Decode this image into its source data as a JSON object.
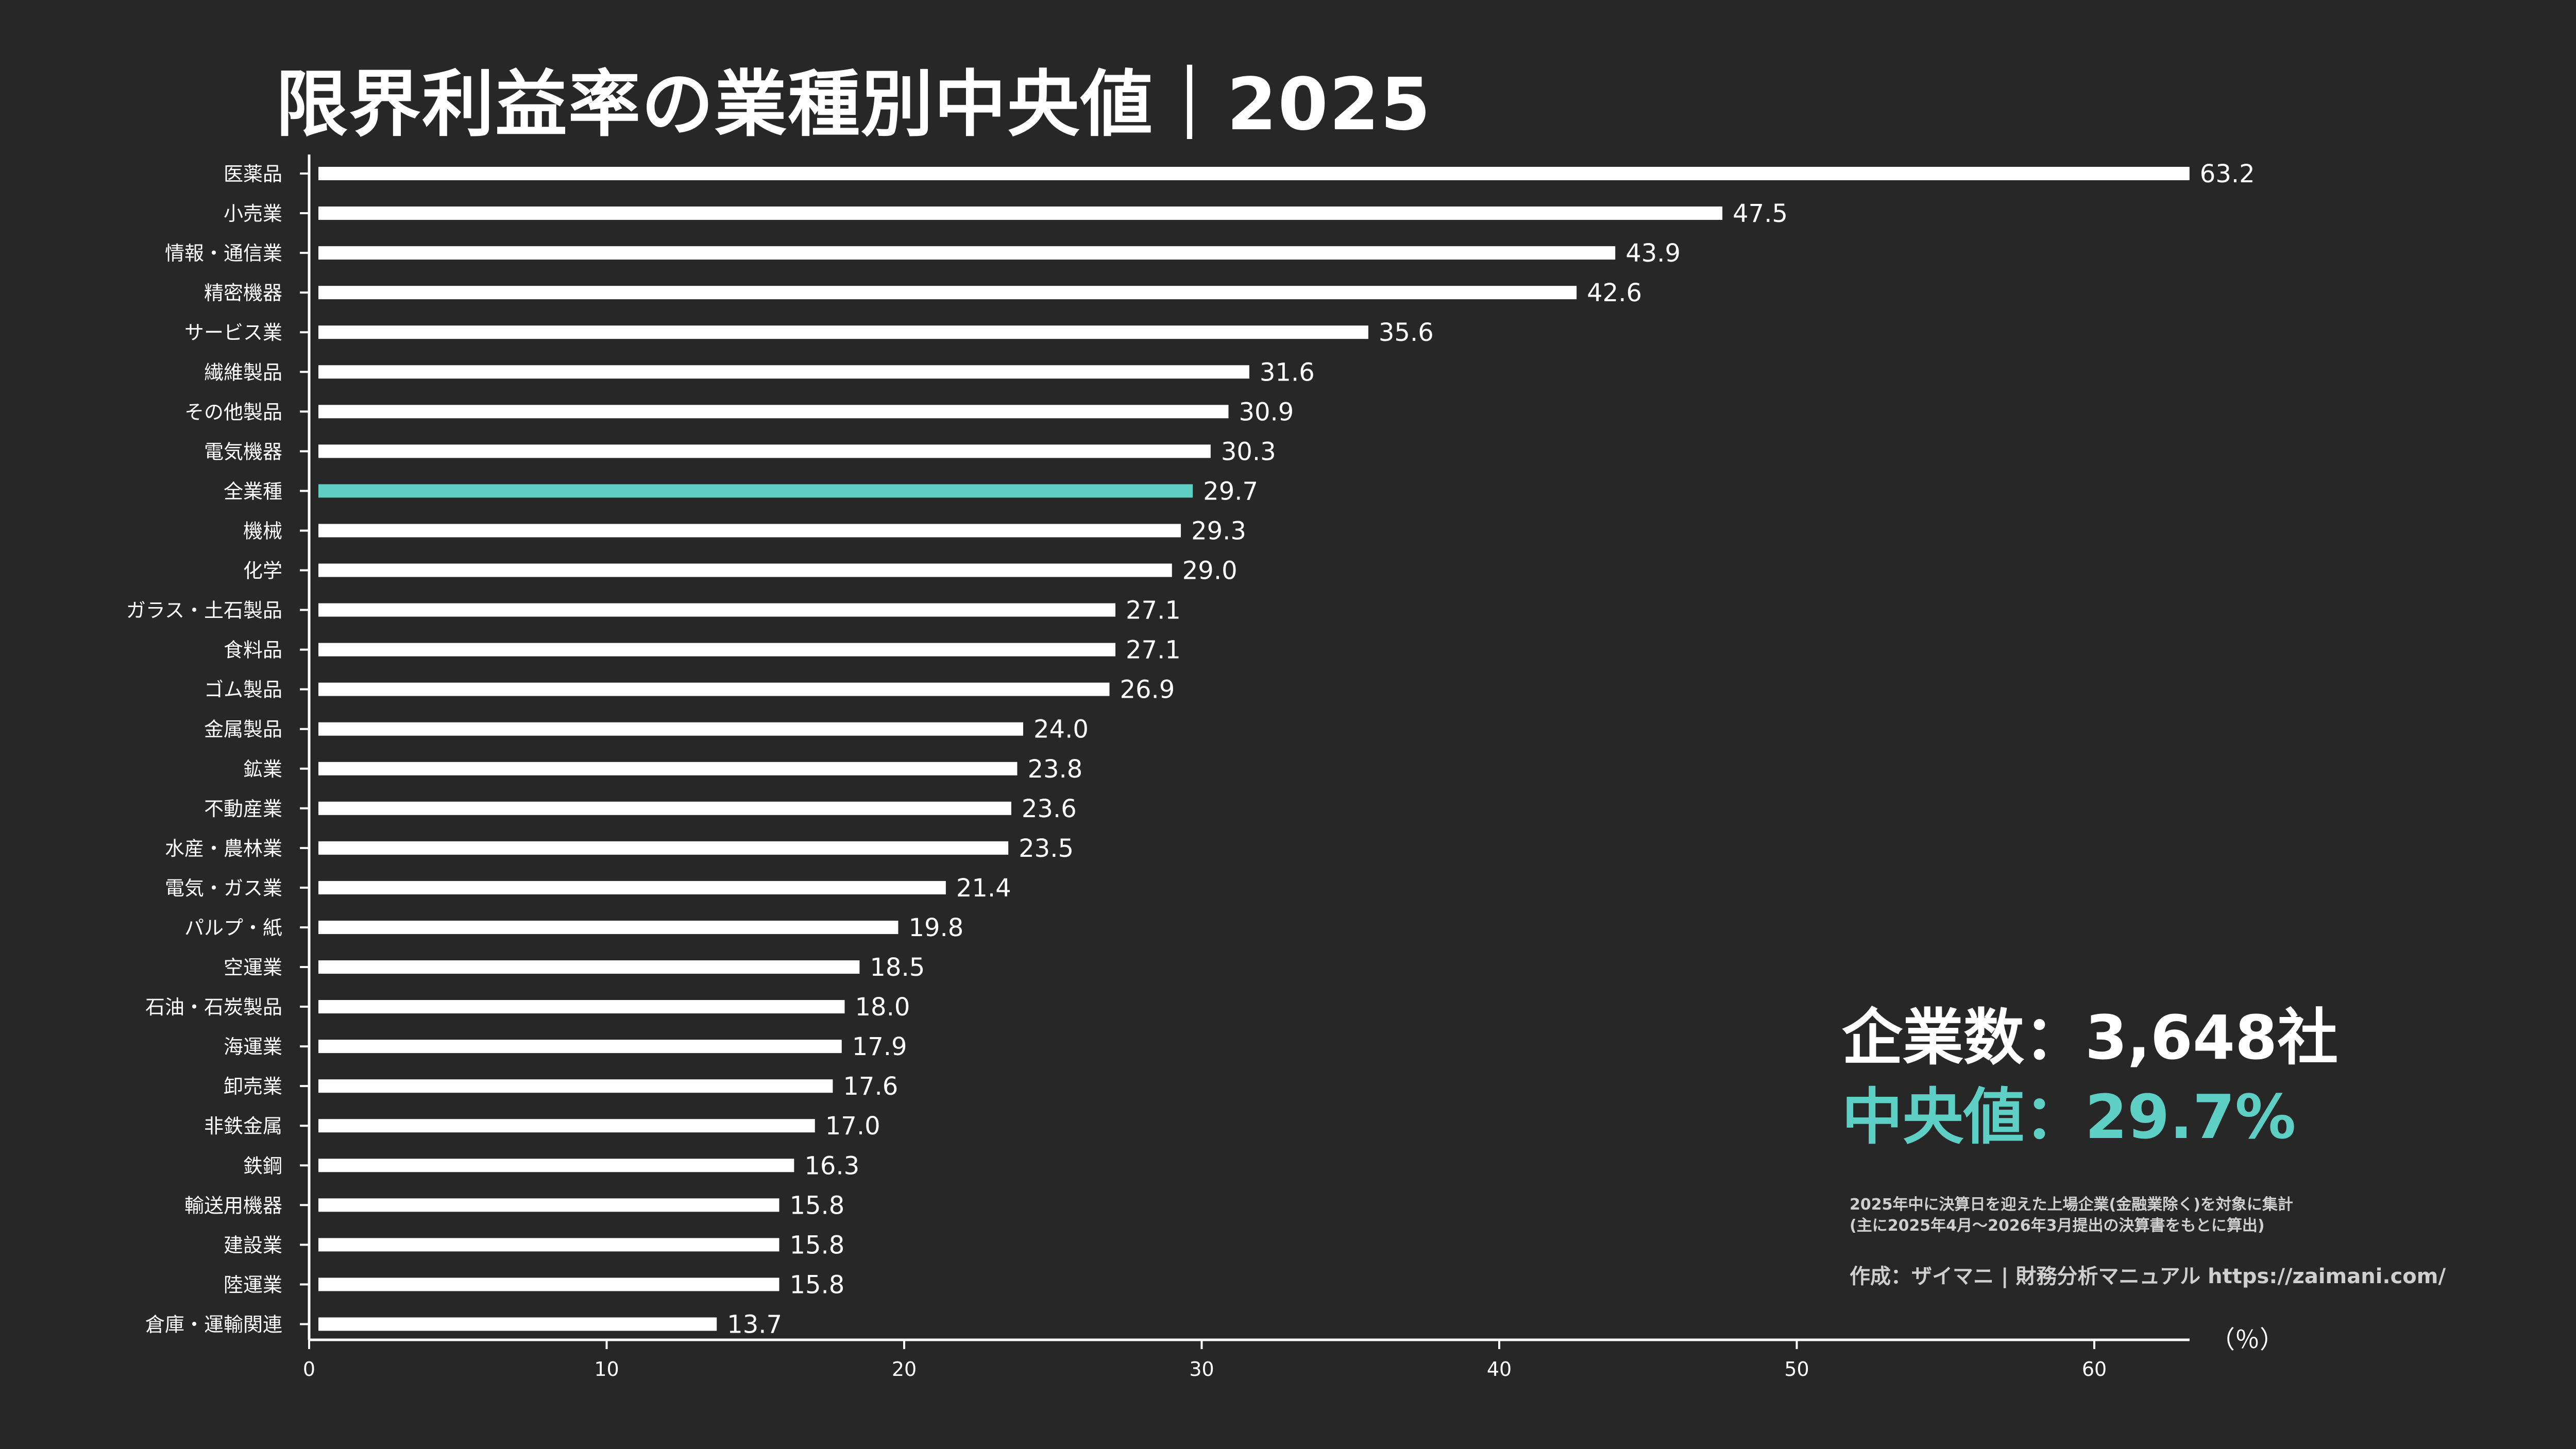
{
  "colors": {
    "background": "#272727",
    "bar": "#ffffff",
    "highlight": "#5ecfc4",
    "text": "#ffffff",
    "note": "#cfcfcf"
  },
  "summary": {
    "company_count": "企業数：3,648社",
    "median": "中央値：29.7%"
  },
  "note_lines": [
    "2025年中に決算日を迎えた上場企業(金融業除く)を対象に集計",
    "(主に2025年4月〜2026年3月提出の決算書をもとに算出)"
  ],
  "credit": "作成：ザイマニ | 財務分析マニュアル https://zaimani.com/",
  "chart_data": {
    "type": "bar",
    "orientation": "horizontal",
    "title": "限界利益率の業種別中央値｜2025",
    "xlabel": "（％）",
    "xlim": [
      0,
      63.2
    ],
    "xticks": [
      0,
      10,
      20,
      30,
      40,
      50,
      60
    ],
    "highlight_category": "全業種",
    "categories": [
      "医薬品",
      "小売業",
      "情報・通信業",
      "精密機器",
      "サービス業",
      "繊維製品",
      "その他製品",
      "電気機器",
      "全業種",
      "機械",
      "化学",
      "ガラス・土石製品",
      "食料品",
      "ゴム製品",
      "金属製品",
      "鉱業",
      "不動産業",
      "水産・農林業",
      "電気・ガス業",
      "パルプ・紙",
      "空運業",
      "石油・石炭製品",
      "海運業",
      "卸売業",
      "非鉄金属",
      "鉄鋼",
      "輸送用機器",
      "建設業",
      "陸運業",
      "倉庫・運輸関連"
    ],
    "values": [
      63.2,
      47.5,
      43.9,
      42.6,
      35.6,
      31.6,
      30.9,
      30.3,
      29.7,
      29.3,
      29.0,
      27.1,
      27.1,
      26.9,
      24.0,
      23.8,
      23.6,
      23.5,
      21.4,
      19.8,
      18.5,
      18.0,
      17.9,
      17.6,
      17.0,
      16.3,
      15.8,
      15.8,
      15.8,
      13.7
    ],
    "value_labels": [
      "63.2",
      "47.5",
      "43.9",
      "42.6",
      "35.6",
      "31.6",
      "30.9",
      "30.3",
      "29.7",
      "29.3",
      "29.0",
      "27.1",
      "27.1",
      "26.9",
      "24.0",
      "23.8",
      "23.6",
      "23.5",
      "21.4",
      "19.8",
      "18.5",
      "18.0",
      "17.9",
      "17.6",
      "17.0",
      "16.3",
      "15.8",
      "15.8",
      "15.8",
      "13.7"
    ]
  }
}
